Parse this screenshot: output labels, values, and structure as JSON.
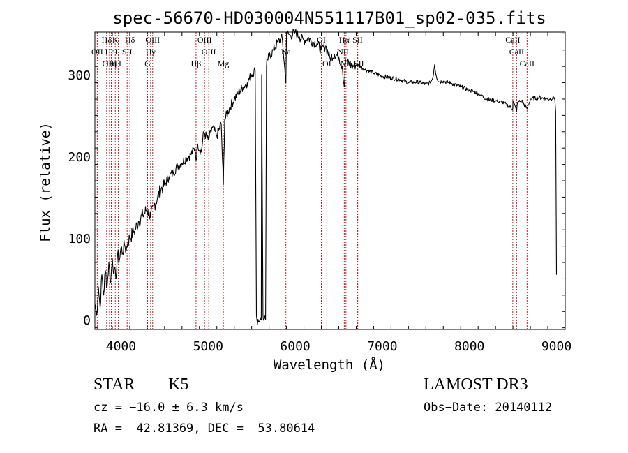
{
  "chart_data": {
    "type": "line",
    "title": "spec-56670-HD030004N551117B01_sp02-035.fits",
    "xlabel": "Wavelength (Å)",
    "ylabel": "Flux (relative)",
    "xlim": [
      3700,
      9100
    ],
    "ylim": [
      -12,
      352
    ],
    "xticks": [
      4000,
      5000,
      6000,
      7000,
      8000,
      9000
    ],
    "xtick_labels": [
      "4000",
      "5000",
      "6000",
      "7000",
      "8000",
      "9000"
    ],
    "yticks": [
      0,
      100,
      200,
      300
    ],
    "ytick_labels": [
      "0",
      "100",
      "200",
      "300"
    ],
    "grid": false,
    "series": [
      {
        "color": "#000000",
        "x": [
          3700,
          3720,
          3740,
          3760,
          3780,
          3800,
          3820,
          3840,
          3860,
          3880,
          3900,
          3920,
          3940,
          3960,
          3980,
          4000,
          4020,
          4040,
          4060,
          4080,
          4100,
          4150,
          4200,
          4250,
          4300,
          4340,
          4380,
          4420,
          4460,
          4500,
          4550,
          4600,
          4650,
          4700,
          4750,
          4800,
          4850,
          4861,
          4880,
          4920,
          4950,
          5000,
          5050,
          5100,
          5150,
          5175,
          5190,
          5250,
          5300,
          5350,
          5400,
          5450,
          5500,
          5540,
          5555,
          5560,
          5610,
          5615,
          5630,
          5640,
          5660,
          5670,
          5680,
          5700,
          5750,
          5800,
          5850,
          5893,
          5900,
          5950,
          6000,
          6050,
          6100,
          6150,
          6200,
          6250,
          6300,
          6350,
          6400,
          6450,
          6500,
          6540,
          6563,
          6580,
          6600,
          6650,
          6700,
          6750,
          6800,
          6900,
          7000,
          7100,
          7200,
          7300,
          7400,
          7500,
          7550,
          7580,
          7600,
          7620,
          7650,
          7700,
          7800,
          7900,
          8000,
          8100,
          8200,
          8300,
          8400,
          8498,
          8500,
          8542,
          8550,
          8600,
          8662,
          8700,
          8800,
          8900,
          8980,
          8990,
          9000
        ],
        "values": [
          20,
          5,
          40,
          15,
          55,
          30,
          60,
          40,
          70,
          45,
          75,
          60,
          50,
          80,
          72,
          88,
          82,
          92,
          85,
          96,
          100,
          108,
          120,
          128,
          135,
          125,
          140,
          150,
          160,
          165,
          175,
          180,
          188,
          192,
          198,
          202,
          210,
          195,
          215,
          205,
          230,
          220,
          235,
          225,
          240,
          165,
          245,
          260,
          270,
          278,
          285,
          290,
          300,
          305,
          5,
          0,
          0,
          300,
          5,
          0,
          0,
          310,
          318,
          322,
          330,
          340,
          345,
          290,
          350,
          348,
          352,
          346,
          342,
          345,
          340,
          338,
          330,
          335,
          320,
          325,
          322,
          310,
          285,
          318,
          315,
          310,
          312,
          310,
          306,
          302,
          298,
          296,
          294,
          290,
          291,
          288,
          290,
          296,
          312,
          298,
          291,
          292,
          289,
          285,
          281,
          277,
          270,
          268,
          265,
          258,
          268,
          255,
          266,
          268,
          258,
          270,
          272,
          270,
          272,
          255,
          55
        ]
      }
    ],
    "reference_lines": [
      {
        "label": "Hδ",
        "x": 3835,
        "row": 0
      },
      {
        "label": "OII",
        "x": 3727,
        "row": 1
      },
      {
        "label": "OIII",
        "x": 3868,
        "row": 2
      },
      {
        "label": "K",
        "x": 3934,
        "row": 0
      },
      {
        "label": "HeI",
        "x": 3889,
        "row": 1
      },
      {
        "label": "Hη",
        "x": 3889,
        "row": 2
      },
      {
        "label": "SII",
        "x": 4070,
        "row": 1
      },
      {
        "label": "H",
        "x": 3969,
        "row": 2
      },
      {
        "label": "Hδ",
        "x": 4102,
        "row": 0
      },
      {
        "label": "OIII",
        "x": 4363,
        "row": 0
      },
      {
        "label": "Hγ",
        "x": 4340,
        "row": 1
      },
      {
        "label": "G",
        "x": 4305,
        "row": 2
      },
      {
        "label": "Hβ",
        "x": 4861,
        "row": 2
      },
      {
        "label": "OIII",
        "x": 4959,
        "row": 0
      },
      {
        "label": "OIII",
        "x": 5007,
        "row": 1
      },
      {
        "label": "Mg",
        "x": 5175,
        "row": 2
      },
      {
        "label": "Na",
        "x": 5893,
        "row": 1
      },
      {
        "label": "OI",
        "x": 6300,
        "row": 0
      },
      {
        "label": "OI",
        "x": 6363,
        "row": 2
      },
      {
        "label": "Hα",
        "x": 6563,
        "row": 0
      },
      {
        "label": "SII",
        "x": 6716,
        "row": 0
      },
      {
        "label": "NII",
        "x": 6548,
        "row": 1
      },
      {
        "label": "NII",
        "x": 6583,
        "row": 2
      },
      {
        "label": "SII",
        "x": 6731,
        "row": 2
      },
      {
        "label": "CaII",
        "x": 8498,
        "row": 0
      },
      {
        "label": "CaII",
        "x": 8542,
        "row": 1
      },
      {
        "label": "CaII",
        "x": 8662,
        "row": 2
      }
    ]
  },
  "info": {
    "class_label": "STAR",
    "subclass": "K5",
    "survey": "LAMOST DR3",
    "cz": "cz = −16.0 ± 6.3 km/s",
    "obs_date": "Obs−Date: 20140112",
    "coords": "RA =  42.81369, DEC =  53.80614"
  }
}
